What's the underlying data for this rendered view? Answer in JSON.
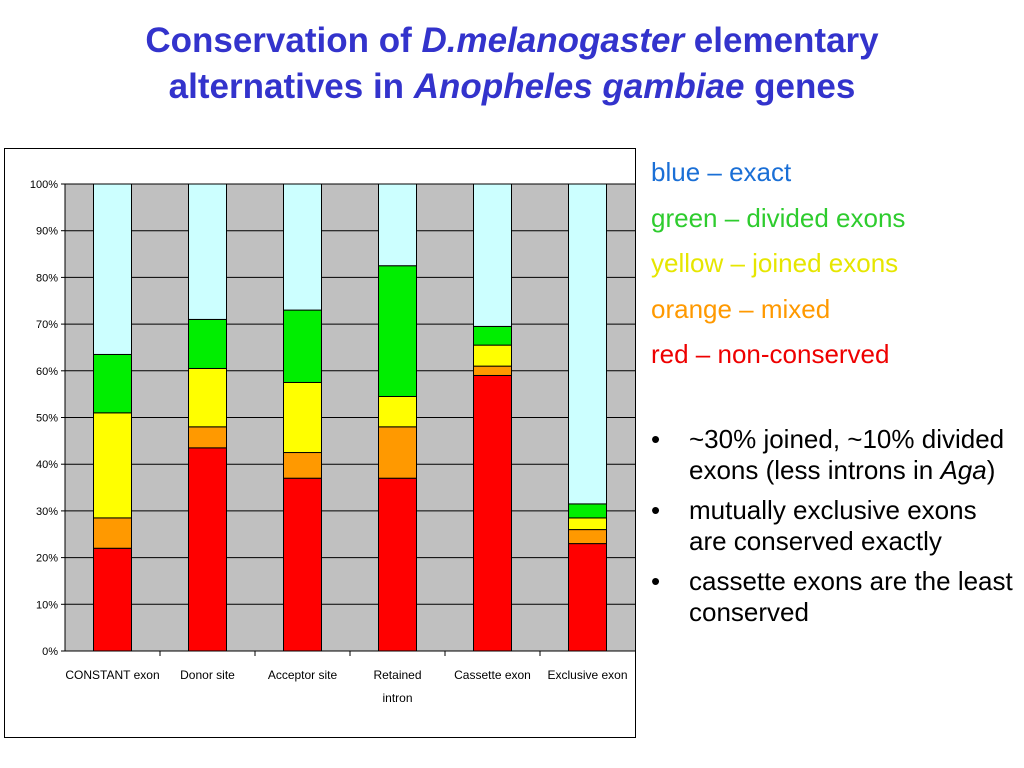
{
  "title": {
    "line1_a": "Conservation of ",
    "line1_b": "D.melanogaster",
    "line1_c": " elementary",
    "line2_a": "alternatives in ",
    "line2_b": "Anopheles gambiae",
    "line2_c": " genes"
  },
  "legend": [
    {
      "text": "blue – exact",
      "color": "#1a6fd6"
    },
    {
      "text": "green – divided exons",
      "color": "#2ecc2e"
    },
    {
      "text": "yellow – joined exons",
      "color": "#e6e600"
    },
    {
      "text": "orange – mixed",
      "color": "#ff9900"
    },
    {
      "text": "red – non-conserved",
      "color": "#ee0000"
    }
  ],
  "bullets": {
    "bullet_char": "•",
    "b1_a": "~30% joined, ~10% divided exons (less introns in ",
    "b1_b": "Aga",
    "b1_c": ")",
    "b2": "mutually exclusive exons are conserved exactly",
    "b3": "cassette exons are the least conserved"
  },
  "colors": {
    "exact": "#ccffff",
    "divided": "#00ee00",
    "joined": "#ffff00",
    "mixed": "#ff9900",
    "nonconserved": "#ff0000",
    "plot_background": "#c0c0c0"
  },
  "chart_data": {
    "type": "bar",
    "stacked": true,
    "percent_axis": true,
    "categories": [
      "CONSTANT exon",
      "Donor site",
      "Acceptor site",
      "Retained intron",
      "Cassette exon",
      "Exclusive exon"
    ],
    "series": [
      {
        "key": "nonconserved",
        "values": [
          22,
          43.5,
          37,
          37,
          59,
          23
        ]
      },
      {
        "key": "mixed",
        "values": [
          6.5,
          4.5,
          5.5,
          11,
          2,
          3
        ]
      },
      {
        "key": "joined",
        "values": [
          22.5,
          12.5,
          15,
          6.5,
          4.5,
          2.5
        ]
      },
      {
        "key": "divided",
        "values": [
          12.5,
          10.5,
          15.5,
          28,
          4,
          3
        ]
      },
      {
        "key": "exact",
        "values": [
          36.5,
          29,
          27,
          17.5,
          30.5,
          68.5
        ]
      }
    ],
    "ylim": [
      0,
      100
    ],
    "yticks": [
      "0%",
      "10%",
      "20%",
      "30%",
      "40%",
      "50%",
      "60%",
      "70%",
      "80%",
      "90%",
      "100%"
    ],
    "grid": true,
    "legend": "none"
  }
}
